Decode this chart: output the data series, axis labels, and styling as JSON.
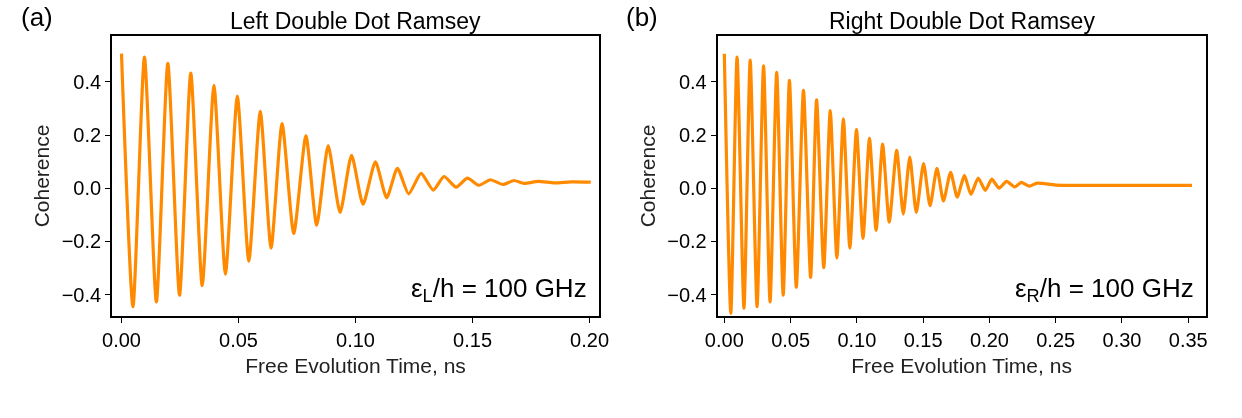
{
  "chart_data": [
    {
      "type": "line",
      "title": "Left Double Dot Ramsey",
      "xlabel": "Free Evolution Time, ns",
      "ylabel": "Coherence",
      "annotations": [
        "(a)",
        "ε$_{L}$/h = 100 GHz"
      ],
      "series": [
        {
          "color": "#ff8a00",
          "x": [
            0,
            0.0049,
            0.0098,
            0.0149,
            0.0198,
            0.0248,
            0.0296,
            0.0345,
            0.0395,
            0.0444,
            0.0495,
            0.0544,
            0.0593,
            0.0639,
            0.0686,
            0.0736,
            0.0788,
            0.0834,
            0.0883,
            0.0934,
            0.0983,
            0.1032,
            0.1085,
            0.1133,
            0.1179,
            0.1227,
            0.128,
            0.1332,
            0.1378,
            0.143,
            0.1478,
            0.1527,
            0.1576,
            0.1629,
            0.1677,
            0.172,
            0.178,
            0.185,
            0.192,
            0.2005
          ],
          "values": [
            0.506,
            -0.445,
            0.493,
            -0.427,
            0.469,
            -0.402,
            0.433,
            -0.366,
            0.387,
            -0.323,
            0.346,
            -0.274,
            0.289,
            -0.225,
            0.243,
            -0.17,
            0.197,
            -0.139,
            0.16,
            -0.091,
            0.124,
            -0.06,
            0.099,
            -0.036,
            0.075,
            -0.021,
            0.056,
            -0.007,
            0.044,
            0.004,
            0.038,
            0.011,
            0.032,
            0.014,
            0.029,
            0.018,
            0.026,
            0.02,
            0.024,
            0.023
          ]
        }
      ],
      "xlim": [
        -0.004,
        0.204
      ],
      "ylim": [
        -0.48,
        0.572
      ],
      "xticks": [
        {
          "value": 0,
          "label": "0.00"
        },
        {
          "value": 0.05,
          "label": "0.05"
        },
        {
          "value": 0.1,
          "label": "0.10"
        },
        {
          "value": 0.15,
          "label": "0.15"
        },
        {
          "value": 0.2,
          "label": "0.20"
        }
      ],
      "yticks": [
        {
          "value": -0.4,
          "label": "−0.4"
        },
        {
          "value": -0.2,
          "label": "−0.2"
        },
        {
          "value": 0,
          "label": "0.0"
        },
        {
          "value": 0.2,
          "label": "0.2"
        },
        {
          "value": 0.4,
          "label": "0.4"
        }
      ],
      "grid": false
    },
    {
      "type": "line",
      "title": "Right Double Dot Ramsey",
      "xlabel": "Free Evolution Time, ns",
      "ylabel": "Coherence",
      "annotations": [
        "(b)",
        "ε$_{R}$/h = 100 GHz"
      ],
      "series": [
        {
          "color": "#ff8a00",
          "x": [
            0,
            0.0049,
            0.0096,
            0.0148,
            0.0195,
            0.0247,
            0.0296,
            0.0345,
            0.0395,
            0.0444,
            0.0491,
            0.0543,
            0.0597,
            0.0651,
            0.0696,
            0.075,
            0.0799,
            0.0849,
            0.0898,
            0.0947,
            0.0997,
            0.1046,
            0.1095,
            0.1145,
            0.1194,
            0.1244,
            0.13,
            0.135,
            0.1399,
            0.1448,
            0.1503,
            0.1552,
            0.1604,
            0.1653,
            0.1707,
            0.1757,
            0.1811,
            0.186,
            0.1915,
            0.1969,
            0.2018,
            0.2073,
            0.2129,
            0.2191,
            0.224,
            0.2302,
            0.2359,
            0.25,
            0.28,
            0.32,
            0.3528
          ],
          "values": [
            0.505,
            -0.47,
            0.493,
            -0.451,
            0.481,
            -0.445,
            0.46,
            -0.427,
            0.435,
            -0.402,
            0.405,
            -0.372,
            0.368,
            -0.335,
            0.332,
            -0.298,
            0.292,
            -0.262,
            0.261,
            -0.225,
            0.221,
            -0.188,
            0.187,
            -0.158,
            0.166,
            -0.127,
            0.142,
            -0.097,
            0.117,
            -0.091,
            0.093,
            -0.066,
            0.075,
            -0.048,
            0.06,
            -0.033,
            0.048,
            -0.023,
            0.038,
            -0.008,
            0.034,
            0.0,
            0.026,
            0.005,
            0.022,
            0.008,
            0.019,
            0.012,
            0.011,
            0.011,
            0.011
          ]
        }
      ],
      "xlim": [
        -0.005,
        0.363
      ],
      "ylim": [
        -0.48,
        0.572
      ],
      "xticks": [
        {
          "value": 0,
          "label": "0.00"
        },
        {
          "value": 0.05,
          "label": "0.05"
        },
        {
          "value": 0.1,
          "label": "0.10"
        },
        {
          "value": 0.15,
          "label": "0.15"
        },
        {
          "value": 0.2,
          "label": "0.20"
        },
        {
          "value": 0.25,
          "label": "0.25"
        },
        {
          "value": 0.3,
          "label": "0.30"
        },
        {
          "value": 0.35,
          "label": "0.35"
        }
      ],
      "yticks": [
        {
          "value": -0.4,
          "label": "−0.4"
        },
        {
          "value": -0.2,
          "label": "−0.2"
        },
        {
          "value": 0,
          "label": "0.0"
        },
        {
          "value": 0.2,
          "label": "0.2"
        },
        {
          "value": 0.4,
          "label": "0.4"
        }
      ],
      "grid": false
    }
  ]
}
